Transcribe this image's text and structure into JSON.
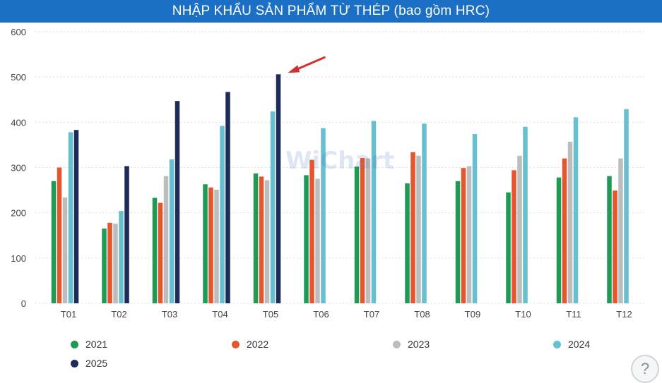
{
  "title": "NHẬP KHẨU SẢN PHẨM TỪ THÉP (bao gồm HRC)",
  "watermark": "WiChart",
  "help_icon": "question-icon",
  "colors": {
    "title_bar": "#1b6fc4",
    "grid": "#d9dde3",
    "axis_text": "#444444",
    "annotation_arrow": "#d32f2f"
  },
  "chart_data": {
    "type": "bar",
    "categories": [
      "T01",
      "T02",
      "T03",
      "T04",
      "T05",
      "T06",
      "T07",
      "T08",
      "T09",
      "T10",
      "T11",
      "T12"
    ],
    "ylim": [
      0,
      600
    ],
    "yticks": [
      0,
      100,
      200,
      300,
      400,
      500,
      600
    ],
    "grid": true,
    "legend_position": "bottom",
    "series": [
      {
        "name": "2021",
        "color": "#1e9a55",
        "values": [
          270,
          165,
          233,
          263,
          287,
          283,
          302,
          265,
          270,
          245,
          278,
          281
        ]
      },
      {
        "name": "2022",
        "color": "#e4572e",
        "values": [
          300,
          178,
          222,
          256,
          280,
          317,
          321,
          334,
          299,
          294,
          320,
          249
        ]
      },
      {
        "name": "2023",
        "color": "#bdbdbd",
        "values": [
          234,
          176,
          281,
          251,
          272,
          275,
          320,
          326,
          303,
          326,
          357,
          320
        ]
      },
      {
        "name": "2024",
        "color": "#67bfd0",
        "values": [
          378,
          204,
          318,
          392,
          424,
          387,
          403,
          397,
          374,
          390,
          411,
          429
        ]
      },
      {
        "name": "2025",
        "color": "#1c2b57",
        "values": [
          383,
          303,
          447,
          467,
          506,
          null,
          null,
          null,
          null,
          null,
          null,
          null
        ]
      }
    ],
    "annotation": {
      "type": "arrow",
      "points_to": {
        "category": "T05",
        "series": "2025"
      }
    }
  }
}
